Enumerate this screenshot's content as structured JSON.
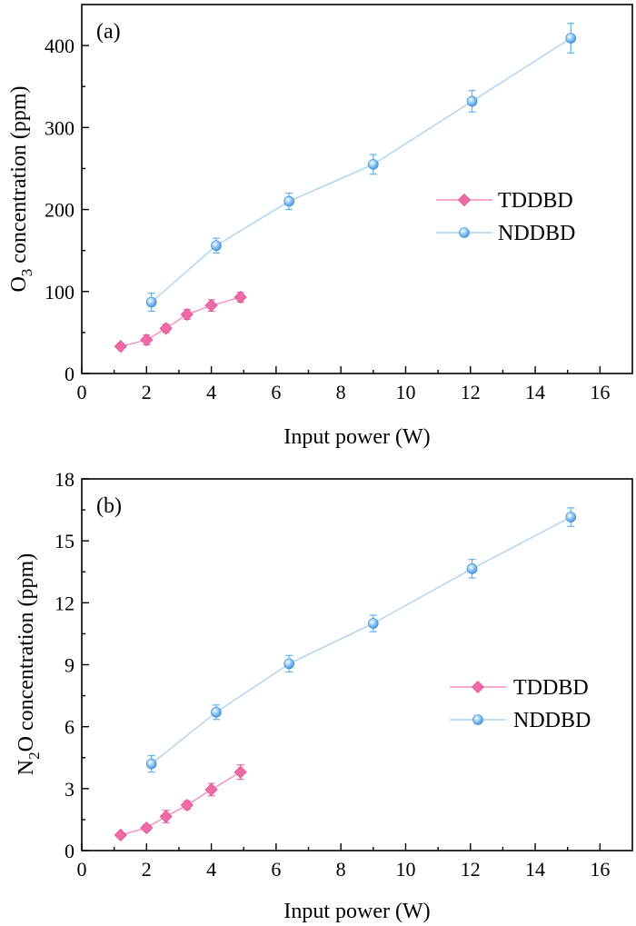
{
  "colors": {
    "tddbd": "#f06aa8",
    "tddbd_line": "#f38fbe",
    "nddbd": "#62b1ee",
    "nddbd_line": "#a9d3f5"
  },
  "chart_data": [
    {
      "type": "line",
      "panel_label": "(a)",
      "xlabel": "Input power (W)",
      "ylabel_main": "O",
      "ylabel_sub": "3",
      "ylabel_rest": " concentration (ppm)",
      "xlim": [
        0,
        17
      ],
      "ylim": [
        0,
        450
      ],
      "xticks": [
        0,
        2,
        4,
        6,
        8,
        10,
        12,
        14,
        16
      ],
      "yticks": [
        0,
        100,
        200,
        300,
        400
      ],
      "legend_position": "center-right",
      "series": [
        {
          "name": "TDDBD",
          "marker": "diamond",
          "x": [
            1.2,
            2.0,
            2.6,
            3.25,
            4.0,
            4.9
          ],
          "y": [
            33,
            41,
            55,
            72,
            83,
            93
          ],
          "err": [
            3,
            6,
            5,
            6,
            7,
            6
          ]
        },
        {
          "name": "NDDBD",
          "marker": "sphere",
          "x": [
            2.15,
            4.15,
            6.4,
            9.0,
            12.05,
            15.1
          ],
          "y": [
            87,
            156,
            210,
            255,
            332,
            409
          ],
          "err": [
            11,
            9,
            10,
            12,
            13,
            18
          ]
        }
      ]
    },
    {
      "type": "line",
      "panel_label": "(b)",
      "xlabel": "Input power (W)",
      "ylabel_main": "N",
      "ylabel_sub": "2",
      "ylabel_rest": "O concentration (ppm)",
      "xlim": [
        0,
        17
      ],
      "ylim": [
        0,
        18
      ],
      "xticks": [
        0,
        2,
        4,
        6,
        8,
        10,
        12,
        14,
        16
      ],
      "yticks": [
        0,
        3,
        6,
        9,
        12,
        15,
        18
      ],
      "legend_position": "center-right",
      "series": [
        {
          "name": "TDDBD",
          "marker": "diamond",
          "x": [
            1.2,
            2.0,
            2.6,
            3.25,
            4.0,
            4.9
          ],
          "y": [
            0.75,
            1.1,
            1.65,
            2.2,
            2.95,
            3.8
          ],
          "err": [
            0.1,
            0.15,
            0.3,
            0.2,
            0.3,
            0.35
          ]
        },
        {
          "name": "NDDBD",
          "marker": "sphere",
          "x": [
            2.15,
            4.15,
            6.4,
            9.0,
            12.05,
            15.1
          ],
          "y": [
            4.2,
            6.7,
            9.05,
            11.0,
            13.65,
            16.15
          ],
          "err": [
            0.4,
            0.35,
            0.4,
            0.4,
            0.45,
            0.45
          ]
        }
      ]
    }
  ]
}
